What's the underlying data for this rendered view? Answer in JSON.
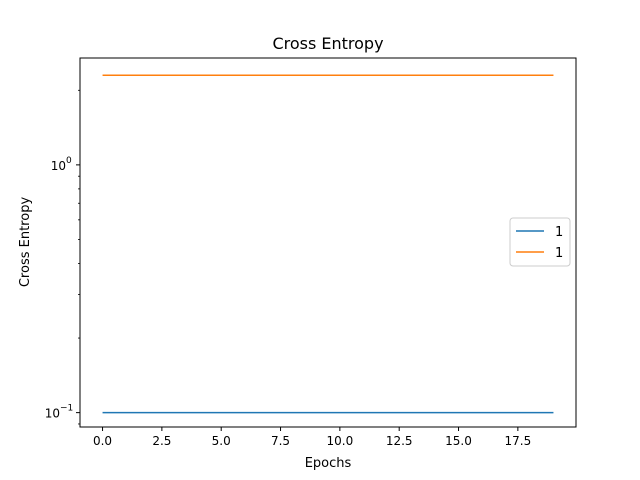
{
  "chart_data": {
    "type": "line",
    "title": "Cross Entropy",
    "xlabel": "Epochs",
    "ylabel": "Cross Entropy",
    "y_scale": "log",
    "xlim": [
      -0.95,
      19.95
    ],
    "ylim": [
      0.0875,
      2.7
    ],
    "x_ticks": [
      {
        "value": 0.0,
        "label": "0.0"
      },
      {
        "value": 2.5,
        "label": "2.5"
      },
      {
        "value": 5.0,
        "label": "5.0"
      },
      {
        "value": 7.5,
        "label": "7.5"
      },
      {
        "value": 10.0,
        "label": "10.0"
      },
      {
        "value": 12.5,
        "label": "12.5"
      },
      {
        "value": 15.0,
        "label": "15.0"
      },
      {
        "value": 17.5,
        "label": "17.5"
      }
    ],
    "y_ticks": [
      {
        "value": 0.1,
        "base": "10",
        "exponent": "−1"
      },
      {
        "value": 1.0,
        "base": "10",
        "exponent": "0"
      }
    ],
    "grid": false,
    "legend_position": "center-right",
    "x": [
      0,
      1,
      2,
      3,
      4,
      5,
      6,
      7,
      8,
      9,
      10,
      11,
      12,
      13,
      14,
      15,
      16,
      17,
      18,
      19
    ],
    "series": [
      {
        "name": "1",
        "color": "#1f77b4",
        "values": [
          0.1,
          0.1,
          0.1,
          0.1,
          0.1,
          0.1,
          0.1,
          0.1,
          0.1,
          0.1,
          0.1,
          0.1,
          0.1,
          0.1,
          0.1,
          0.1,
          0.1,
          0.1,
          0.1,
          0.1
        ]
      },
      {
        "name": "1",
        "color": "#ff7f0e",
        "values": [
          2.3,
          2.3,
          2.3,
          2.3,
          2.3,
          2.3,
          2.3,
          2.3,
          2.3,
          2.3,
          2.3,
          2.3,
          2.3,
          2.3,
          2.3,
          2.3,
          2.3,
          2.3,
          2.3,
          2.3
        ]
      }
    ]
  }
}
